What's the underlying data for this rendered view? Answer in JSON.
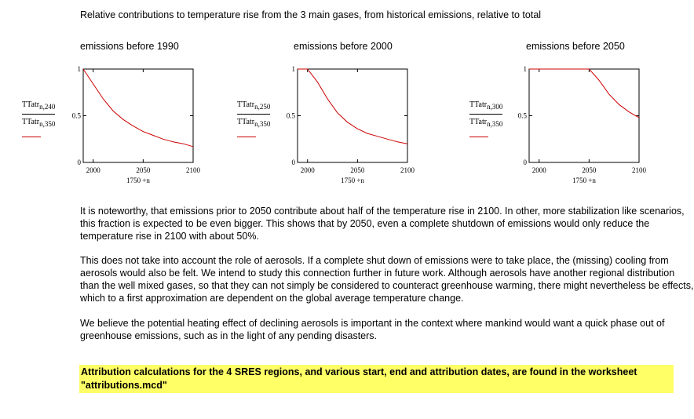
{
  "header": {
    "title": "Relative contributions to temperature rise from the 3 main gases, from historical emissions, relative to total"
  },
  "charts": [
    {
      "title": "emissions before 1990",
      "y_num": "TTatr",
      "y_num_sub": "n,240",
      "y_den": "TTatr",
      "y_den_sub": "n,350",
      "x_expr": "1750 +n"
    },
    {
      "title": "emissions before 2000",
      "y_num": "TTatr",
      "y_num_sub": "n,250",
      "y_den": "TTatr",
      "y_den_sub": "n,350",
      "x_expr": "1750 +n"
    },
    {
      "title": "emissions before 2050",
      "y_num": "TTatr",
      "y_num_sub": "n,300",
      "y_den": "TTatr",
      "y_den_sub": "n,350",
      "x_expr": "1750 +n"
    }
  ],
  "chart_data": [
    {
      "type": "line",
      "title": "emissions before 1990",
      "xlabel": "1750 +n",
      "ylabel": "TTatr n,240 / TTatr n,350",
      "xlim": [
        1990,
        2100
      ],
      "ylim": [
        0,
        1
      ],
      "xticks": [
        "2000",
        "2050",
        "2100"
      ],
      "yticks": [
        "0",
        "0.5",
        "1"
      ],
      "grid": false,
      "series": [
        {
          "color": "#cc0000",
          "x": [
            1990,
            2000,
            2010,
            2020,
            2030,
            2040,
            2050,
            2060,
            2070,
            2080,
            2090,
            2100
          ],
          "y": [
            1.0,
            0.84,
            0.68,
            0.55,
            0.46,
            0.39,
            0.33,
            0.29,
            0.25,
            0.22,
            0.2,
            0.17
          ]
        }
      ]
    },
    {
      "type": "line",
      "title": "emissions before 2000",
      "xlabel": "1750 +n",
      "ylabel": "TTatr n,250 / TTatr n,350",
      "xlim": [
        1990,
        2100
      ],
      "ylim": [
        0,
        1
      ],
      "xticks": [
        "2000",
        "2050",
        "2100"
      ],
      "yticks": [
        "0",
        "0.5",
        "1"
      ],
      "grid": false,
      "series": [
        {
          "color": "#cc0000",
          "x": [
            1990,
            2000,
            2010,
            2020,
            2030,
            2040,
            2050,
            2060,
            2070,
            2080,
            2090,
            2100
          ],
          "y": [
            1.0,
            1.0,
            0.86,
            0.68,
            0.53,
            0.43,
            0.36,
            0.31,
            0.28,
            0.25,
            0.22,
            0.2
          ]
        }
      ]
    },
    {
      "type": "line",
      "title": "emissions before 2050",
      "xlabel": "1750 +n",
      "ylabel": "TTatr n,300 / TTatr n,350",
      "xlim": [
        1990,
        2100
      ],
      "ylim": [
        0,
        1
      ],
      "xticks": [
        "2000",
        "2050",
        "2100"
      ],
      "yticks": [
        "0",
        "0.5",
        "1"
      ],
      "grid": false,
      "series": [
        {
          "color": "#cc0000",
          "x": [
            1990,
            2000,
            2010,
            2020,
            2030,
            2040,
            2050,
            2060,
            2070,
            2080,
            2090,
            2100
          ],
          "y": [
            1.0,
            1.0,
            1.0,
            1.0,
            1.0,
            1.0,
            1.0,
            0.88,
            0.73,
            0.62,
            0.54,
            0.48
          ]
        }
      ]
    }
  ],
  "body": {
    "p1": "It is noteworthy, that emissions prior to 2050 contribute about half of the temperature rise in 2100. In other, more stabilization like scenarios, this fraction is expected to be even bigger. This shows that by 2050, even a complete shutdown of emissions would only reduce the temperature rise in 2100 with about 50%.",
    "p2": "This does not take into account the role of aerosols. If a complete shut down of emissions were to take place, the (missing) cooling from aerosols would also be felt. We intend to study this connection further in future work. Although aerosols have another regional distribution than the well mixed gases, so that they can not simply be considered to counteract greenhouse warming, there might nevertheless be effects, which to a first approximation are dependent on the global average temperature change.",
    "p3": "We believe the potential heating effect of declining aerosols is important in the context where mankind would want a quick phase out of greenhouse emissions, such as in the light of any pending disasters.",
    "note": "Attribution calculations for the 4 SRES regions, and various start, end and attribution dates, are found in the worksheet \"attributions.mcd\""
  }
}
